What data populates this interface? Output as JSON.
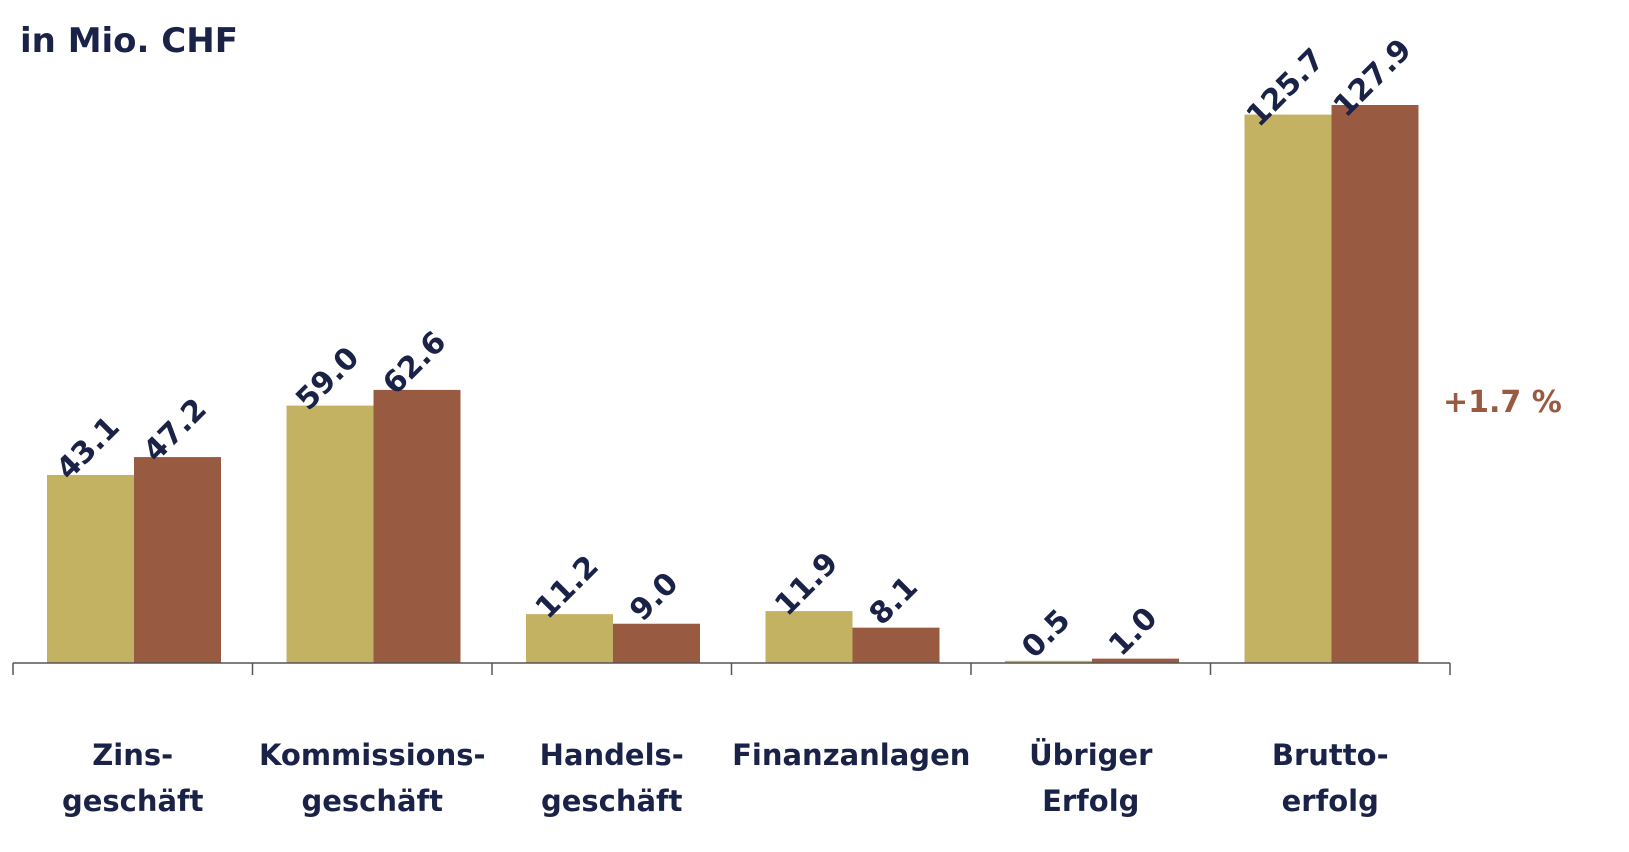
{
  "chart_data": {
    "type": "bar",
    "title": "in Mio. CHF",
    "categories": [
      [
        "Zins-",
        "geschäft"
      ],
      [
        "Kommissions-",
        "geschäft"
      ],
      [
        "Handels-",
        "geschäft"
      ],
      [
        "Finanzanlagen"
      ],
      [
        "Übriger",
        "Erfolg"
      ],
      [
        "Brutto-",
        "erfolg"
      ]
    ],
    "series": [
      {
        "color": "#c4b263",
        "values": [
          43.1,
          59.0,
          11.2,
          11.9,
          0.5,
          125.7
        ],
        "value_labels": [
          "43.1",
          "59.0",
          "11.2",
          "11.9",
          "0.5",
          "125.7"
        ]
      },
      {
        "color": "#985b42",
        "values": [
          47.2,
          62.6,
          9.0,
          8.1,
          1.0,
          127.9
        ],
        "value_labels": [
          "47.2",
          "62.6",
          "9.0",
          "8.1",
          "1.0",
          "127.9"
        ]
      }
    ],
    "annotations": [
      {
        "text": "+1.7 %",
        "color": "#985b42"
      }
    ]
  }
}
